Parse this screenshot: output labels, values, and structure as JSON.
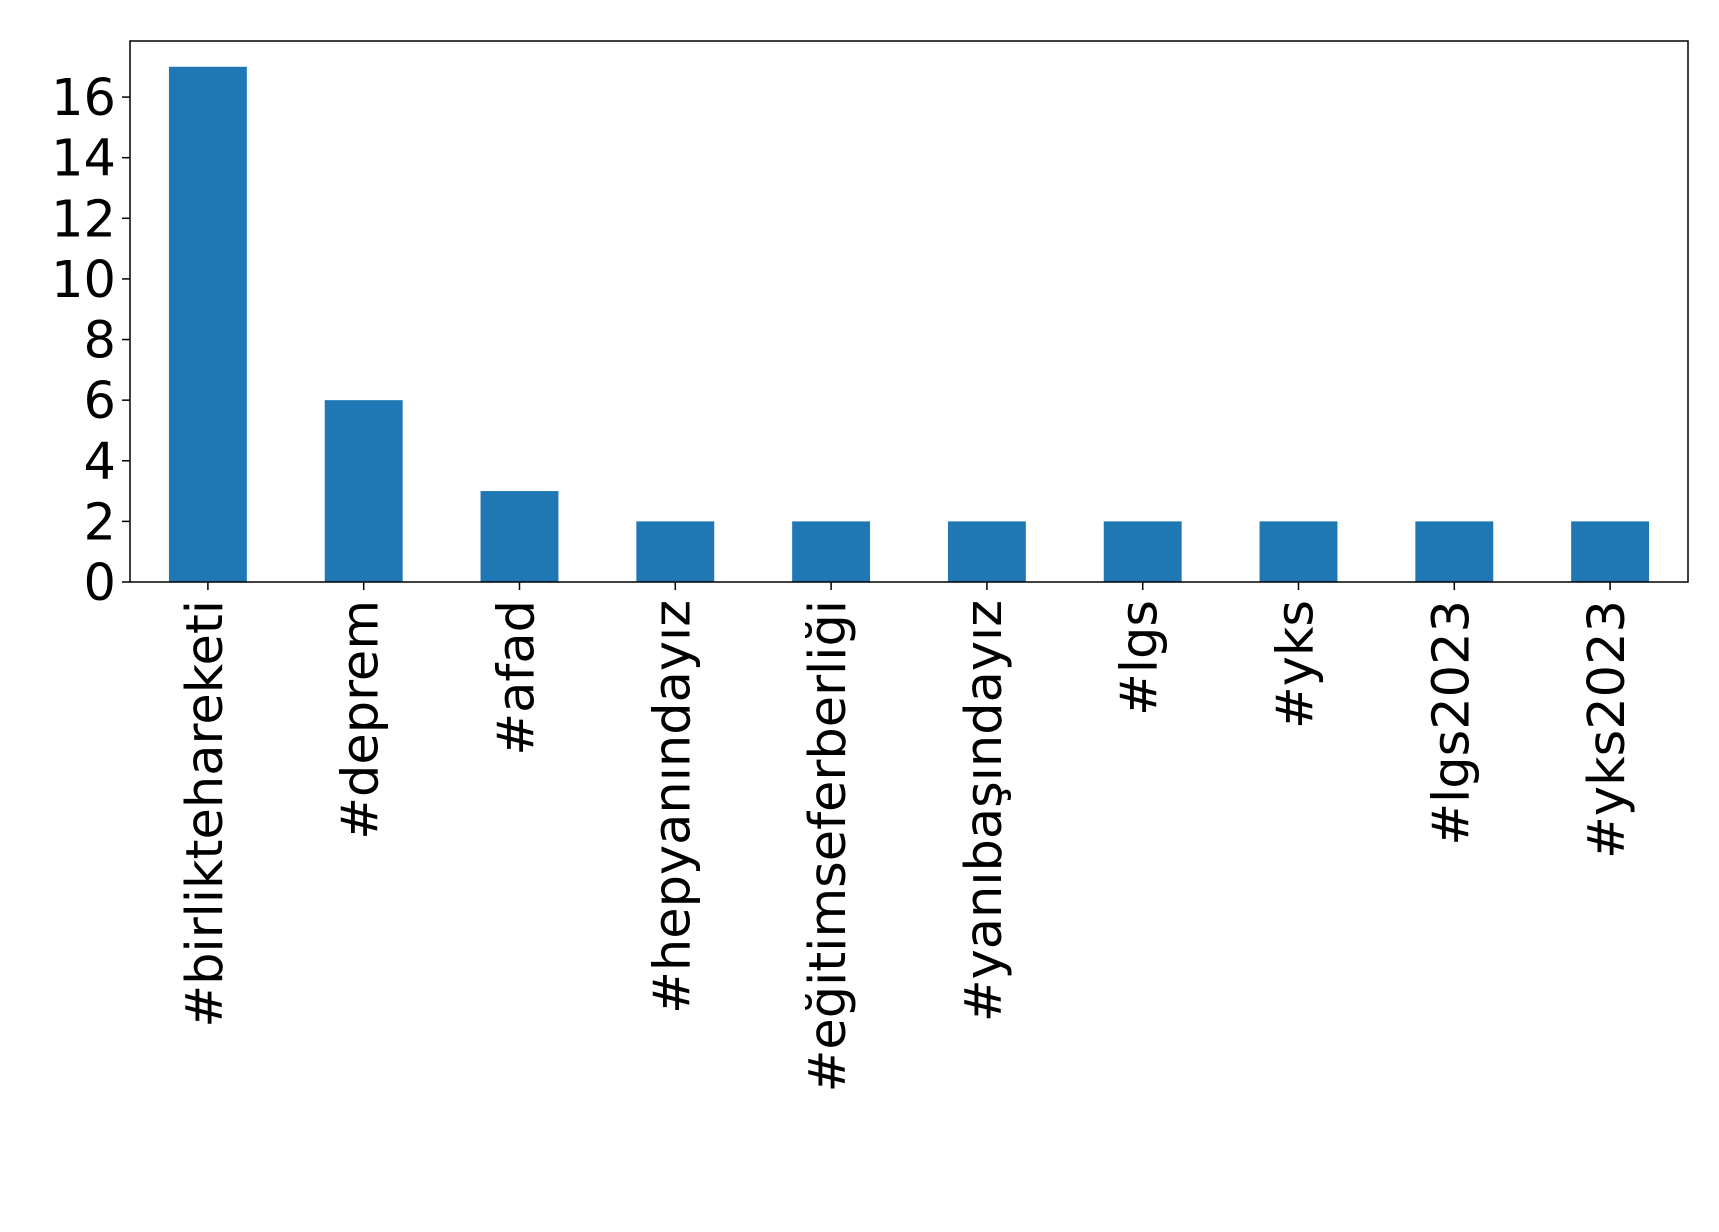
{
  "chart_data": {
    "type": "bar",
    "categories": [
      "#birliktehareketi",
      "#deprem",
      "#afad",
      "#hepyanındayız",
      "#eğitimseferberliği",
      "#yanıbaşındayız",
      "#lgs",
      "#yks",
      "#lgs2023",
      "#yks2023"
    ],
    "values": [
      17,
      6,
      3,
      2,
      2,
      2,
      2,
      2,
      2,
      2
    ],
    "color": "#1f77b4",
    "ylim": [
      0,
      17.85
    ],
    "yticks": [
      0,
      2,
      4,
      6,
      8,
      10,
      12,
      14,
      16
    ],
    "grid": false
  }
}
